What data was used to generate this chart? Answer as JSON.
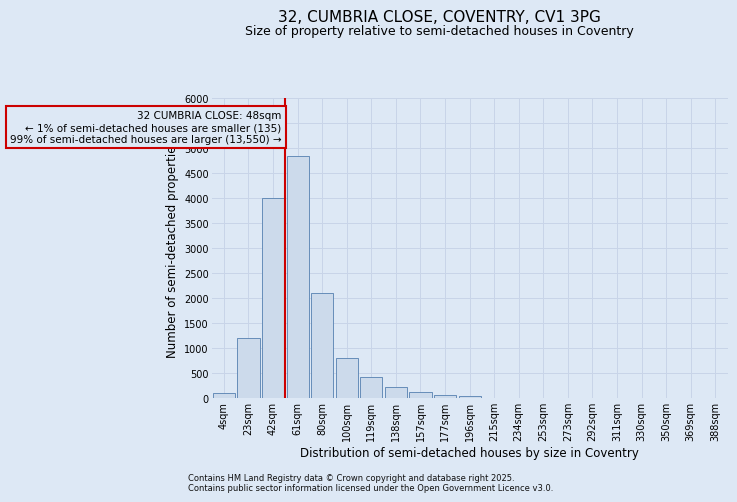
{
  "title_line1": "32, CUMBRIA CLOSE, COVENTRY, CV1 3PG",
  "title_line2": "Size of property relative to semi-detached houses in Coventry",
  "xlabel": "Distribution of semi-detached houses by size in Coventry",
  "ylabel": "Number of semi-detached properties",
  "categories": [
    "4sqm",
    "23sqm",
    "42sqm",
    "61sqm",
    "80sqm",
    "100sqm",
    "119sqm",
    "138sqm",
    "157sqm",
    "177sqm",
    "196sqm",
    "215sqm",
    "234sqm",
    "253sqm",
    "273sqm",
    "292sqm",
    "311sqm",
    "330sqm",
    "350sqm",
    "369sqm",
    "388sqm"
  ],
  "values": [
    100,
    1200,
    4000,
    4850,
    2100,
    800,
    420,
    220,
    130,
    70,
    45,
    8,
    0,
    0,
    0,
    0,
    0,
    0,
    0,
    0,
    0
  ],
  "bar_color": "#ccdaeb",
  "bar_edge_color": "#5580b0",
  "vline_color": "#cc0000",
  "vline_x_index": 2,
  "annotation_text": "32 CUMBRIA CLOSE: 48sqm\n← 1% of semi-detached houses are smaller (135)\n99% of semi-detached houses are larger (13,550) →",
  "annotation_color": "#cc0000",
  "ylim": [
    0,
    6000
  ],
  "yticks": [
    0,
    500,
    1000,
    1500,
    2000,
    2500,
    3000,
    3500,
    4000,
    4500,
    5000,
    5500,
    6000
  ],
  "background_color": "#dde8f5",
  "grid_color": "#c8d4e8",
  "footer_line1": "Contains HM Land Registry data © Crown copyright and database right 2025.",
  "footer_line2": "Contains public sector information licensed under the Open Government Licence v3.0.",
  "title_fontsize": 11,
  "subtitle_fontsize": 9,
  "axis_label_fontsize": 8.5,
  "tick_fontsize": 7,
  "footer_fontsize": 6,
  "annot_fontsize": 7.5
}
